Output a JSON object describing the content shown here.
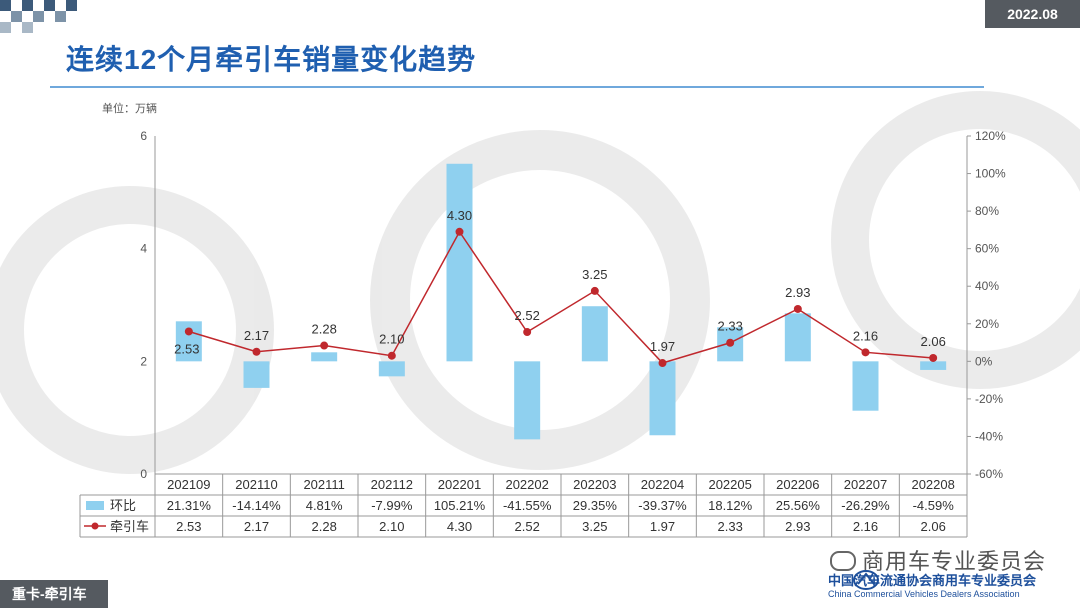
{
  "header": {
    "date": "2022.08",
    "title": "连续12个月牵引车销量变化趋势",
    "unit_label": "单位：万辆"
  },
  "footer": {
    "tag": "重卡-牵引车",
    "brand": "商用车专业委员会",
    "org_cn": "中国汽车流通协会商用车专业委员会",
    "org_en": "China Commercial Vehicles Dealers Association"
  },
  "colors": {
    "title": "#1f5fb0",
    "bar": "#8fd0ef",
    "line": "#c0282d",
    "badge": "#555a60"
  },
  "chart_data": {
    "type": "bar+line",
    "categories": [
      "202109",
      "202110",
      "202111",
      "202112",
      "202201",
      "202202",
      "202203",
      "202204",
      "202205",
      "202206",
      "202207",
      "202208"
    ],
    "series": [
      {
        "name": "环比",
        "type": "bar",
        "axis": "right",
        "values": [
          21.31,
          -14.14,
          4.81,
          -7.99,
          105.21,
          -41.55,
          29.35,
          -39.37,
          18.12,
          25.56,
          -26.29,
          -4.59
        ],
        "labels": [
          "21.31%",
          "-14.14%",
          "4.81%",
          "-7.99%",
          "105.21%",
          "-41.55%",
          "29.35%",
          "-39.37%",
          "18.12%",
          "25.56%",
          "-26.29%",
          "-4.59%"
        ]
      },
      {
        "name": "牵引车",
        "type": "line",
        "axis": "left",
        "values": [
          2.53,
          2.17,
          2.28,
          2.1,
          4.3,
          2.52,
          3.25,
          1.97,
          2.33,
          2.93,
          2.16,
          2.06
        ],
        "labels": [
          "2.53",
          "2.17",
          "2.28",
          "2.10",
          "4.30",
          "2.52",
          "3.25",
          "1.97",
          "2.33",
          "2.93",
          "2.16",
          "2.06"
        ]
      }
    ],
    "y_left": {
      "min": 0,
      "max": 6,
      "ticks": [
        "0",
        "2",
        "4",
        "6"
      ]
    },
    "y_right": {
      "min": -60,
      "max": 120,
      "ticks": [
        "-60%",
        "-40%",
        "-20%",
        "0%",
        "20%",
        "40%",
        "60%",
        "80%",
        "100%",
        "120%"
      ]
    },
    "grid": false,
    "legend": "data-table-below"
  }
}
